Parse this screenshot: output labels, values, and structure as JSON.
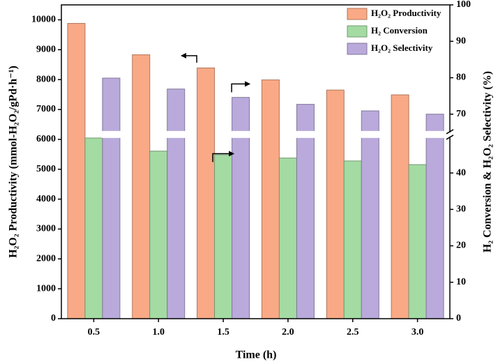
{
  "chart_data": {
    "type": "bar",
    "xlabel": "Time (h)",
    "ylabel": "H₂O₂ Productivity (mmol-H₂O₂/gPd·h⁻¹)",
    "y2label": "H₂ Conversion & H₂O₂ Selectivity (%)",
    "categories": [
      "0.5",
      "1.0",
      "1.5",
      "2.0",
      "2.5",
      "3.0"
    ],
    "series": [
      {
        "name": "H₂O₂ Productivity",
        "color": "#f9a985",
        "values": [
          9880,
          8830,
          8390,
          7990,
          7650,
          7490
        ]
      },
      {
        "name": "H₂ Conversion",
        "color": "#a3dba3",
        "axis": "y2",
        "values": [
          49.6,
          46.0,
          45.0,
          44.1,
          43.3,
          42.3
        ]
      },
      {
        "name": "H₂O₂ Selectivity",
        "color": "#b9aadb",
        "axis": "y2",
        "values": [
          79.9,
          76.9,
          74.6,
          72.7,
          70.9,
          70.0
        ]
      }
    ],
    "ylim": [
      0,
      10500
    ],
    "yticks": [
      0,
      1000,
      2000,
      3000,
      4000,
      5000,
      6000,
      7000,
      8000,
      9000,
      10000
    ],
    "y2lim": [
      0,
      100
    ],
    "y2break": [
      50,
      65
    ],
    "y2ticks": [
      0,
      10,
      20,
      30,
      40,
      70,
      80,
      90,
      100
    ],
    "legend": "upper right"
  }
}
